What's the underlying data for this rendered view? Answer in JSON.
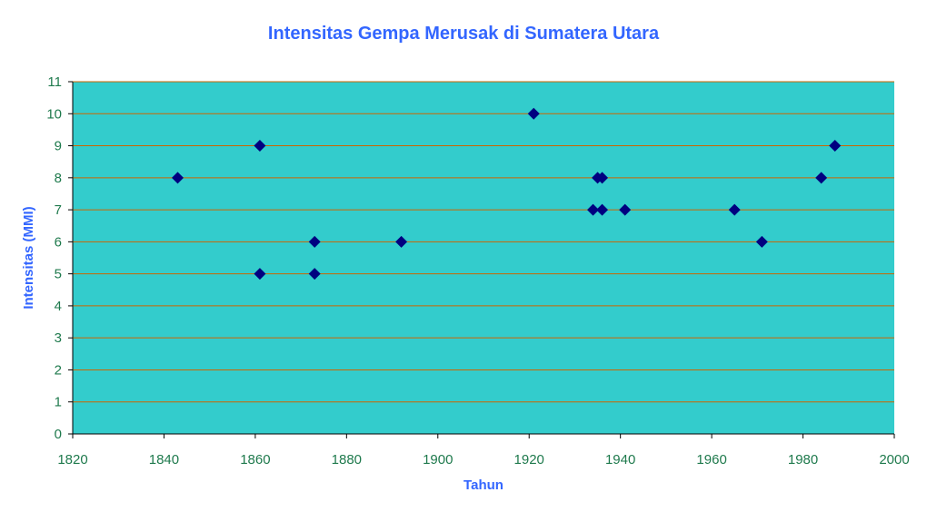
{
  "colors": {
    "title": "#3366ff",
    "axis_title": "#3366ff",
    "tick_label": "#1f7a4d",
    "plot_background": "#33cccc",
    "gridline": "#cc6600",
    "marker": "#000080",
    "page_background": "#ffffff"
  },
  "chart_data": {
    "type": "scatter",
    "title": "Intensitas Gempa Merusak di Sumatera Utara",
    "xlabel": "Tahun",
    "ylabel": "Intensitas (MMI)",
    "xlim": [
      1820,
      2000
    ],
    "ylim": [
      0,
      11
    ],
    "x_ticks": [
      "1820",
      "1840",
      "1860",
      "1880",
      "1900",
      "1920",
      "1940",
      "1960",
      "1980",
      "2000"
    ],
    "y_ticks": [
      "0",
      "1",
      "2",
      "3",
      "4",
      "5",
      "6",
      "7",
      "8",
      "9",
      "10",
      "11"
    ],
    "grid": "horizontal",
    "marker": "diamond",
    "legend": "none",
    "points": [
      {
        "x": 1843,
        "y": 8
      },
      {
        "x": 1861,
        "y": 9
      },
      {
        "x": 1861,
        "y": 5
      },
      {
        "x": 1873,
        "y": 6
      },
      {
        "x": 1873,
        "y": 5
      },
      {
        "x": 1892,
        "y": 6
      },
      {
        "x": 1921,
        "y": 10
      },
      {
        "x": 1934,
        "y": 7
      },
      {
        "x": 1935,
        "y": 8
      },
      {
        "x": 1936,
        "y": 8
      },
      {
        "x": 1936,
        "y": 7
      },
      {
        "x": 1941,
        "y": 7
      },
      {
        "x": 1965,
        "y": 7
      },
      {
        "x": 1971,
        "y": 6
      },
      {
        "x": 1984,
        "y": 8
      },
      {
        "x": 1987,
        "y": 9
      }
    ]
  }
}
